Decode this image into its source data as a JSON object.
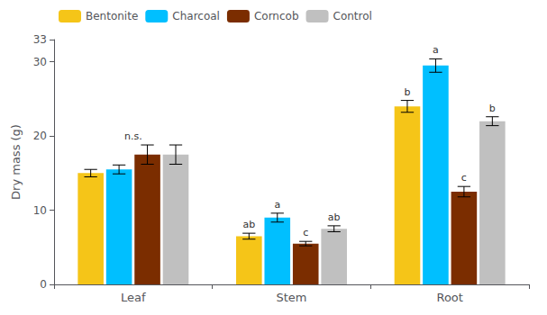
{
  "chart_data": {
    "type": "bar",
    "categories": [
      "Leaf",
      "Stem",
      "Root"
    ],
    "series": [
      {
        "name": "Bentonite",
        "color": "#F5C518",
        "values": [
          15.0,
          6.5,
          24.0
        ],
        "errors": [
          0.5,
          0.4,
          0.8
        ]
      },
      {
        "name": "Charcoal",
        "color": "#00BFFF",
        "values": [
          15.5,
          9.0,
          29.5
        ],
        "errors": [
          0.6,
          0.6,
          0.9
        ]
      },
      {
        "name": "Corncob",
        "color": "#7B2D00",
        "values": [
          17.5,
          5.5,
          12.5
        ],
        "errors": [
          1.3,
          0.3,
          0.7
        ]
      },
      {
        "name": "Control",
        "color": "#C0C0C0",
        "values": [
          17.5,
          7.5,
          22.0
        ],
        "errors": [
          1.3,
          0.4,
          0.6
        ]
      }
    ],
    "annotations": [
      {
        "text": "n.s.",
        "category": "Leaf"
      },
      {
        "text": "ab",
        "category": "Stem",
        "series": "Bentonite"
      },
      {
        "text": "a",
        "category": "Stem",
        "series": "Charcoal"
      },
      {
        "text": "c",
        "category": "Stem",
        "series": "Corncob"
      },
      {
        "text": "ab",
        "category": "Stem",
        "series": "Control"
      },
      {
        "text": "b",
        "category": "Root",
        "series": "Bentonite"
      },
      {
        "text": "a",
        "category": "Root",
        "series": "Charcoal"
      },
      {
        "text": "c",
        "category": "Root",
        "series": "Corncob"
      },
      {
        "text": "b",
        "category": "Root",
        "series": "Control"
      }
    ],
    "ylabel": "Dry mass (g)",
    "ylim": [
      0,
      33
    ],
    "yticks": [
      0,
      10,
      20,
      30
    ],
    "grid": false,
    "legend": "upper left"
  }
}
